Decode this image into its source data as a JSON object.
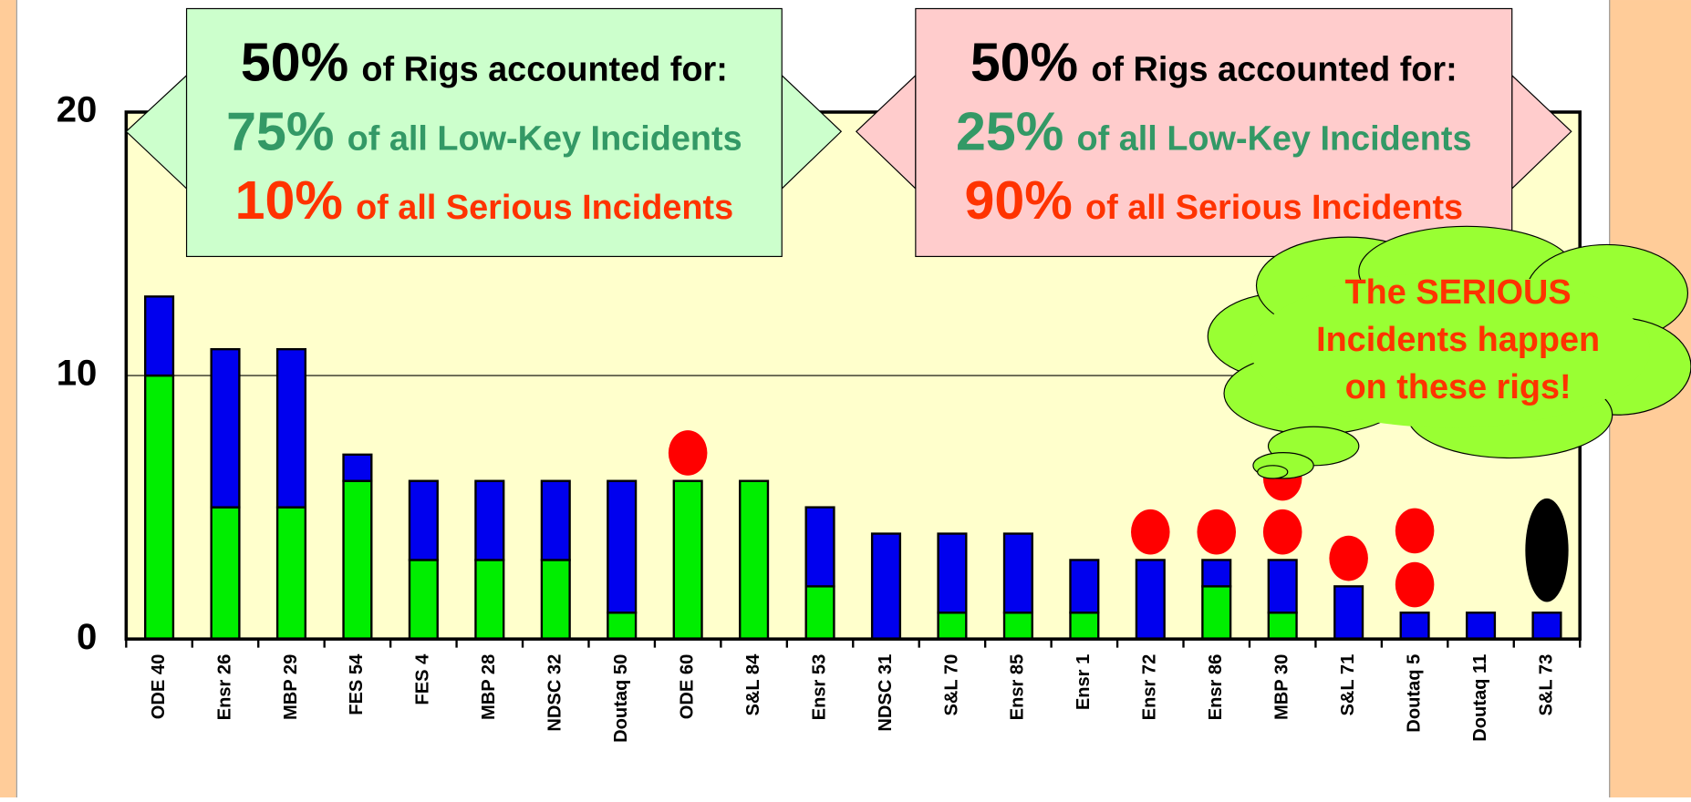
{
  "chart_data": {
    "type": "bar",
    "stacked": true,
    "categories": [
      "ODE 40",
      "Ensr 26",
      "MBP 29",
      "FES 54",
      "FES 4",
      "MBP 28",
      "NDSC 32",
      "Doutaq 50",
      "ODE 60",
      "S&L 84",
      "Ensr 53",
      "NDSC 31",
      "S&L 70",
      "Ensr 85",
      "Ensr 1",
      "Ensr 72",
      "Ensr 86",
      "MBP 30",
      "S&L 71",
      "Doutaq 5",
      "Doutaq 11",
      "S&L 73"
    ],
    "series": [
      {
        "color": "#00ee00",
        "values": [
          10,
          5,
          5,
          6,
          3,
          3,
          3,
          1,
          6,
          6,
          2,
          0,
          1,
          1,
          1,
          0,
          2,
          1,
          0,
          0,
          0,
          0
        ]
      },
      {
        "color": "#0000ee",
        "values": [
          3,
          6,
          6,
          1,
          3,
          3,
          3,
          5,
          0,
          0,
          3,
          4,
          3,
          3,
          2,
          3,
          1,
          2,
          2,
          1,
          1,
          1
        ]
      }
    ],
    "ylim": [
      0,
      20
    ],
    "yticks": [
      0,
      10,
      20
    ],
    "grid": true,
    "serious_markers": [
      {
        "category": 8,
        "count": 1,
        "color": "#ff0000"
      },
      {
        "category": 15,
        "count": 1,
        "color": "#ff0000"
      },
      {
        "category": 16,
        "count": 1,
        "color": "#ff0000"
      },
      {
        "category": 17,
        "count": 2,
        "color": "#ff0000"
      },
      {
        "category": 18,
        "count": 1,
        "color": "#ff0000"
      },
      {
        "category": 19,
        "count": 2,
        "color": "#ff0000"
      },
      {
        "category": 21,
        "count": 1,
        "color": "#000000"
      }
    ],
    "callouts": [
      {
        "lines": [
          {
            "big": "50%",
            "text": "of Rigs accounted for:"
          },
          {
            "big": "75%",
            "text": "of all Low-Key Incidents"
          },
          {
            "big": "10%",
            "text": "of all Serious Incidents"
          }
        ]
      },
      {
        "lines": [
          {
            "big": "50%",
            "text": "of Rigs accounted for:"
          },
          {
            "big": "25%",
            "text": "of all Low-Key Incidents"
          },
          {
            "big": "90%",
            "text": "of all Serious Incidents"
          }
        ]
      }
    ],
    "cloud_text": [
      "The SERIOUS",
      "Incidents happen",
      "on these rigs!"
    ]
  }
}
